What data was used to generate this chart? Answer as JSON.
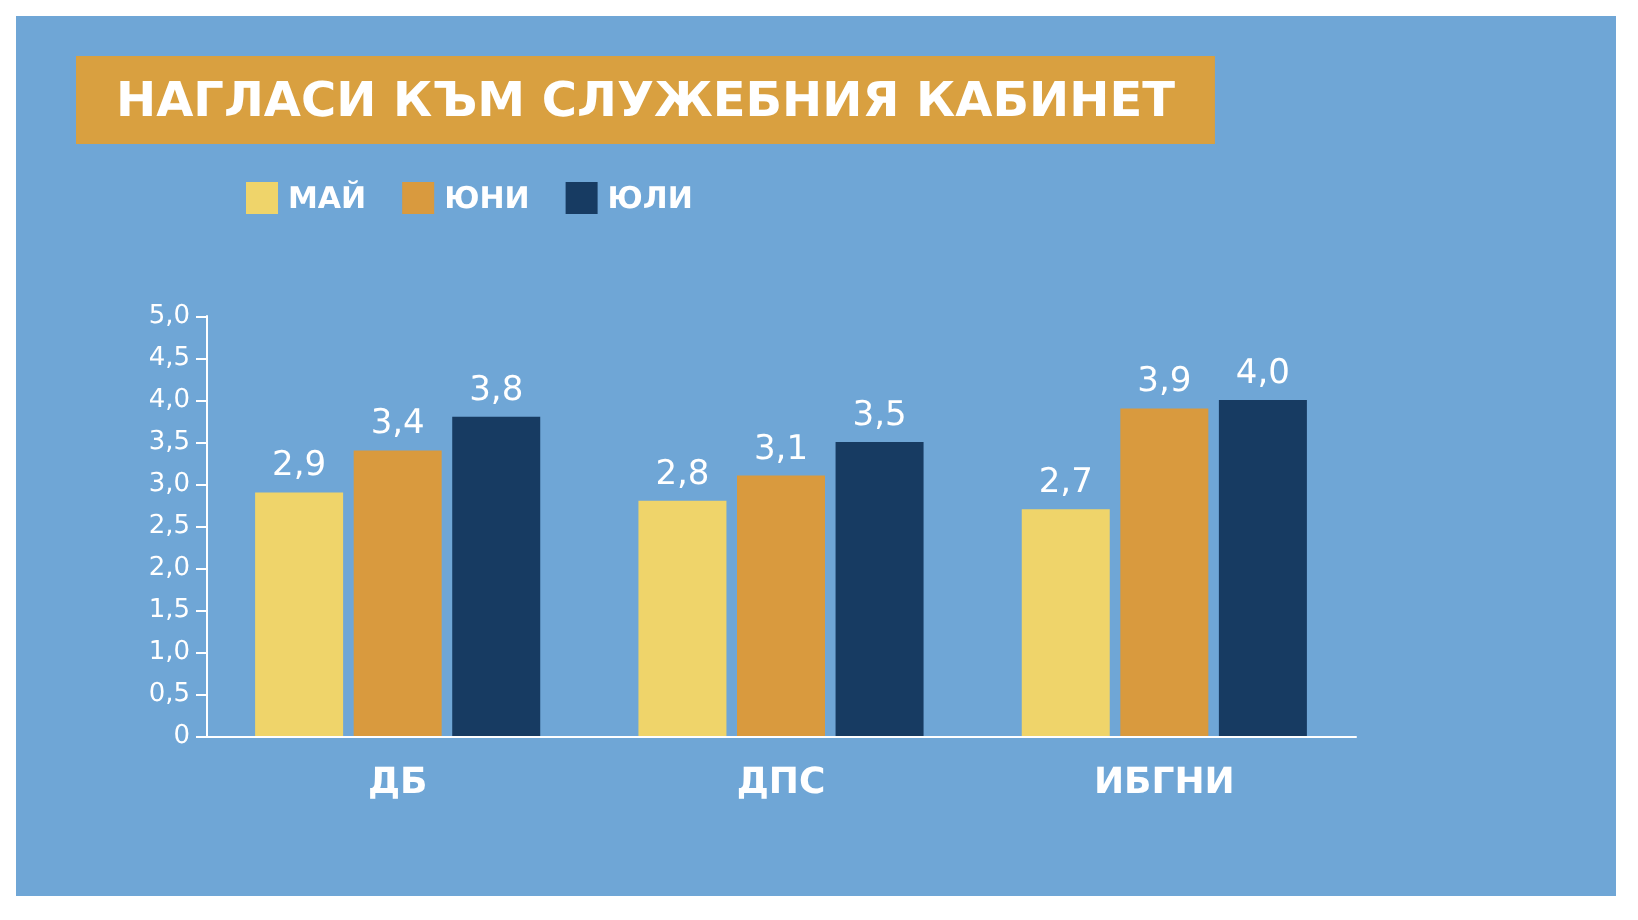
{
  "chart_data": {
    "type": "bar",
    "title": "НАГЛАСИ КЪМ СЛУЖЕБНИЯ КАБИНЕТ",
    "categories": [
      "ДБ",
      "ДПС",
      "ИБГНИ"
    ],
    "series": [
      {
        "name": "МАЙ",
        "color": "#efd46a",
        "values": [
          2.9,
          2.8,
          2.7
        ],
        "value_labels": [
          "2,9",
          "2,8",
          "2,7"
        ]
      },
      {
        "name": "ЮНИ",
        "color": "#d99a3e",
        "values": [
          3.4,
          3.1,
          3.9
        ],
        "value_labels": [
          "3,4",
          "3,1",
          "3,9"
        ]
      },
      {
        "name": "ЮЛИ",
        "color": "#173b62",
        "values": [
          3.8,
          3.5,
          4.0
        ],
        "value_labels": [
          "3,8",
          "3,5",
          "4,0"
        ]
      }
    ],
    "ylim": [
      0,
      5
    ],
    "yticks": [
      0,
      {
        "value": 0.5,
        "label": "0,5"
      },
      {
        "value": 1,
        "label": "1,0"
      },
      {
        "value": 1.5,
        "label": "1,5"
      },
      {
        "value": 2,
        "label": "2,0"
      },
      {
        "value": 2.5,
        "label": "2,5"
      },
      {
        "value": 3,
        "label": "3,0"
      },
      {
        "value": 3.5,
        "label": "3,5"
      },
      {
        "value": 4,
        "label": "4,0"
      },
      {
        "value": 4.5,
        "label": "4,5"
      },
      {
        "value": 5,
        "label": "5,0"
      }
    ],
    "grid": false,
    "legend": "top left"
  }
}
